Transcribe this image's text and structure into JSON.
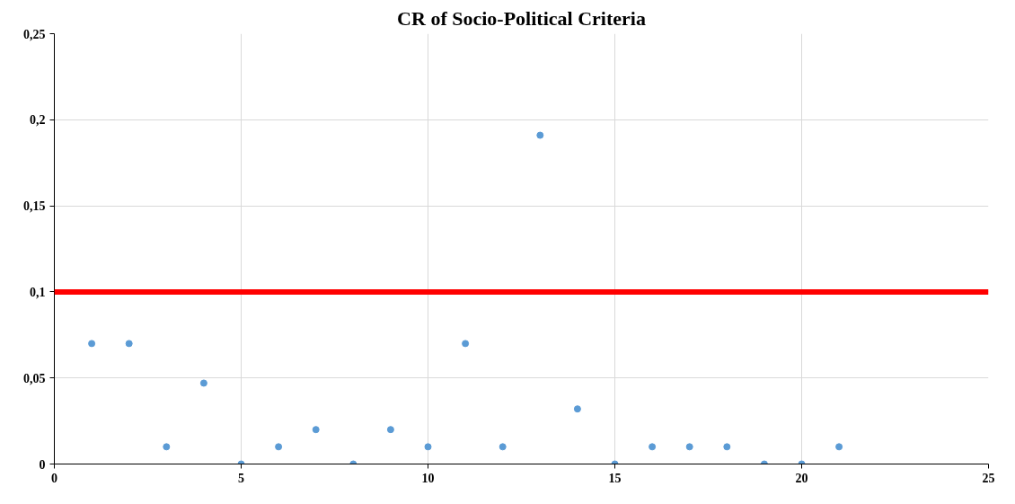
{
  "chart_data": {
    "type": "scatter",
    "title": "CR of Socio-Political Criteria",
    "x": [
      1,
      2,
      3,
      4,
      5,
      6,
      7,
      8,
      9,
      10,
      11,
      12,
      13,
      14,
      15,
      16,
      17,
      18,
      19,
      20,
      21
    ],
    "series": [
      {
        "color": "#5b9bd5",
        "values": [
          0.07,
          0.07,
          0.01,
          0.047,
          0,
          0.01,
          0.02,
          0,
          0.02,
          0.01,
          0.07,
          0.01,
          0.191,
          0.032,
          0,
          0.01,
          0.01,
          0.01,
          0,
          0,
          0.01
        ]
      }
    ],
    "xlim": [
      0,
      25
    ],
    "xticks": [
      0,
      5,
      10,
      15,
      20,
      25
    ],
    "ylim": [
      0,
      0.25
    ],
    "yticks": [
      {
        "value": 0,
        "label": "0"
      },
      {
        "value": 0.05,
        "label": "0,05"
      },
      {
        "value": 0.1,
        "label": "0,1"
      },
      {
        "value": 0.15,
        "label": "0,15"
      },
      {
        "value": 0.2,
        "label": "0,2"
      },
      {
        "value": 0.25,
        "label": "0,25"
      }
    ],
    "ref_lines": [
      {
        "axis": "y",
        "value": 0.1,
        "color": "#ff0000"
      }
    ],
    "grid": true,
    "marker": "circle"
  }
}
